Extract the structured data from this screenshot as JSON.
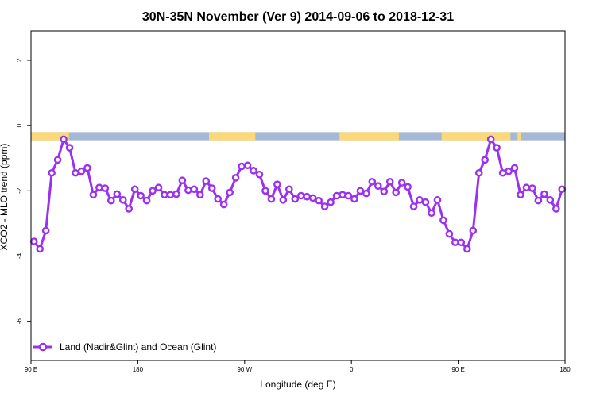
{
  "chart_data": {
    "type": "line",
    "title": "30N-35N November (Ver 9)   2014-09-06 to 2018-12-31",
    "xlabel": "Longitude (deg E)",
    "ylabel": "XCO2 - MLO trend (ppm)",
    "x_tick_labels": [
      "90 E",
      "180",
      "90 W",
      "0",
      "90 E",
      "180"
    ],
    "y_tick_labels": [
      "2",
      "0",
      "-2",
      "-4",
      "-6"
    ],
    "x_ticks": [
      90,
      180,
      270,
      360,
      450,
      540
    ],
    "y_ticks": [
      2,
      0,
      -2,
      -4,
      -6
    ],
    "xlim": [
      90,
      540
    ],
    "ylim": [
      -7.2,
      2.9
    ],
    "grid": false,
    "legend_position": "bottom-left",
    "colors": {
      "series": "#9b30f0",
      "land": "#fbd878",
      "ocean": "#a5b9d7"
    },
    "surface_strip": {
      "y_top": -0.2,
      "y_bottom": -0.45,
      "land_ranges": [
        [
          90,
          122
        ],
        [
          240,
          279
        ],
        [
          350,
          400
        ],
        [
          436,
          494
        ],
        [
          500,
          503
        ]
      ]
    },
    "series": [
      {
        "name": "Land (Nadir&Glint) and Ocean (Glint)",
        "x": [
          92.5,
          97.5,
          102.5,
          107.5,
          112.5,
          117.5,
          122.5,
          127.5,
          132.5,
          137.5,
          142.5,
          147.5,
          152.5,
          157.5,
          162.5,
          167.5,
          172.5,
          177.5,
          182.5,
          187.5,
          192.5,
          197.5,
          202.5,
          207.5,
          212.5,
          217.5,
          222.5,
          227.5,
          232.5,
          237.5,
          242.5,
          247.5,
          252.5,
          257.5,
          262.5,
          267.5,
          272.5,
          277.5,
          282.5,
          287.5,
          292.5,
          297.5,
          302.5,
          307.5,
          312.5,
          317.5,
          322.5,
          327.5,
          332.5,
          337.5,
          342.5,
          347.5,
          352.5,
          357.5,
          362.5,
          367.5,
          372.5,
          377.5,
          382.5,
          387.5,
          392.5,
          397.5,
          402.5,
          407.5,
          412.5,
          417.5,
          422.5,
          427.5,
          432.5,
          437.5,
          442.5,
          447.5,
          452.5,
          457.5,
          462.5,
          467.5,
          472.5,
          477.5,
          482.5,
          487.5,
          492.5,
          497.5,
          502.5,
          507.5,
          512.5,
          517.5,
          522.5,
          527.5,
          532.5,
          537.5
        ],
        "y": [
          -3.55,
          -3.78,
          -3.22,
          -1.45,
          -1.05,
          -0.42,
          -0.68,
          -1.45,
          -1.4,
          -1.3,
          -2.12,
          -1.9,
          -1.92,
          -2.3,
          -2.1,
          -2.28,
          -2.55,
          -1.95,
          -2.15,
          -2.3,
          -2.0,
          -1.9,
          -2.12,
          -2.12,
          -2.1,
          -1.68,
          -1.98,
          -1.95,
          -2.12,
          -1.7,
          -1.92,
          -2.25,
          -2.42,
          -2.05,
          -1.6,
          -1.25,
          -1.22,
          -1.38,
          -1.5,
          -2.0,
          -2.25,
          -1.8,
          -2.28,
          -1.95,
          -2.25,
          -2.15,
          -2.18,
          -2.22,
          -2.3,
          -2.48,
          -2.35,
          -2.15,
          -2.12,
          -2.15,
          -2.25,
          -2.0,
          -2.08,
          -1.72,
          -1.85,
          -2.02,
          -1.72,
          -2.05,
          -1.75,
          -1.88,
          -2.48,
          -2.28,
          -2.35,
          -2.68,
          -2.28,
          -2.9,
          -3.32,
          -3.58,
          -3.58,
          -3.78,
          -3.22,
          -1.45,
          -1.05,
          -0.42,
          -0.68,
          -1.45,
          -1.4,
          -1.3,
          -2.12,
          -1.9,
          -1.92,
          -2.3,
          -2.1,
          -2.28,
          -2.55,
          -1.95
        ]
      }
    ]
  }
}
